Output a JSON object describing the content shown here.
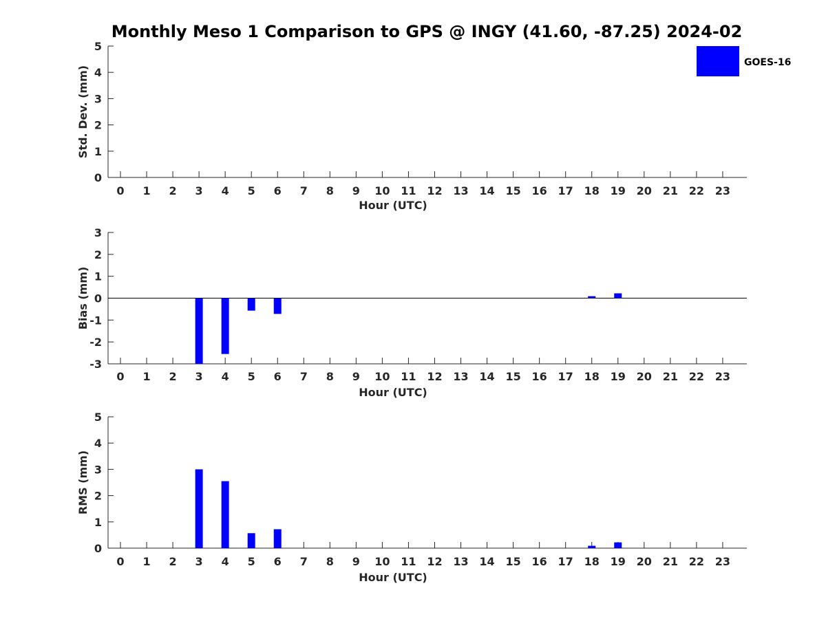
{
  "chart_data": {
    "title": "Monthly Meso 1 Comparison to GPS @ INGY (41.60, -87.25) 2024-02",
    "legend": {
      "label": "GOES-16",
      "color": "#0000ff",
      "placement": "top-right"
    },
    "hours": [
      "0",
      "1",
      "2",
      "3",
      "4",
      "5",
      "6",
      "7",
      "8",
      "9",
      "10",
      "11",
      "12",
      "13",
      "14",
      "15",
      "16",
      "17",
      "18",
      "19",
      "20",
      "21",
      "22",
      "23"
    ],
    "panels": [
      {
        "id": "stddev",
        "type": "bar",
        "ylabel": "Std. Dev. (mm)",
        "xlabel": "Hour (UTC)",
        "ylim": [
          0,
          5
        ],
        "yticks": [
          "0",
          "1",
          "2",
          "3",
          "4",
          "5"
        ],
        "values": [
          null,
          null,
          null,
          0,
          0,
          0,
          0,
          null,
          null,
          null,
          null,
          null,
          null,
          null,
          null,
          null,
          null,
          null,
          0,
          0,
          null,
          null,
          null,
          null
        ]
      },
      {
        "id": "bias",
        "type": "bar",
        "ylabel": "Bias (mm)",
        "xlabel": "Hour (UTC)",
        "ylim": [
          -3,
          3
        ],
        "yticks": [
          "-3",
          "-2",
          "-1",
          "0",
          "1",
          "2",
          "3"
        ],
        "zero_line": true,
        "values": [
          null,
          null,
          null,
          -3.0,
          -2.55,
          -0.57,
          -0.72,
          null,
          null,
          null,
          null,
          null,
          null,
          null,
          null,
          null,
          null,
          null,
          0.09,
          0.22,
          null,
          null,
          null,
          null
        ]
      },
      {
        "id": "rms",
        "type": "bar",
        "ylabel": "RMS (mm)",
        "xlabel": "Hour (UTC)",
        "ylim": [
          0,
          5
        ],
        "yticks": [
          "0",
          "1",
          "2",
          "3",
          "4",
          "5"
        ],
        "values": [
          null,
          null,
          null,
          3.0,
          2.55,
          0.57,
          0.72,
          null,
          null,
          null,
          null,
          null,
          null,
          null,
          null,
          null,
          null,
          null,
          0.09,
          0.22,
          null,
          null,
          null,
          null
        ]
      }
    ]
  }
}
